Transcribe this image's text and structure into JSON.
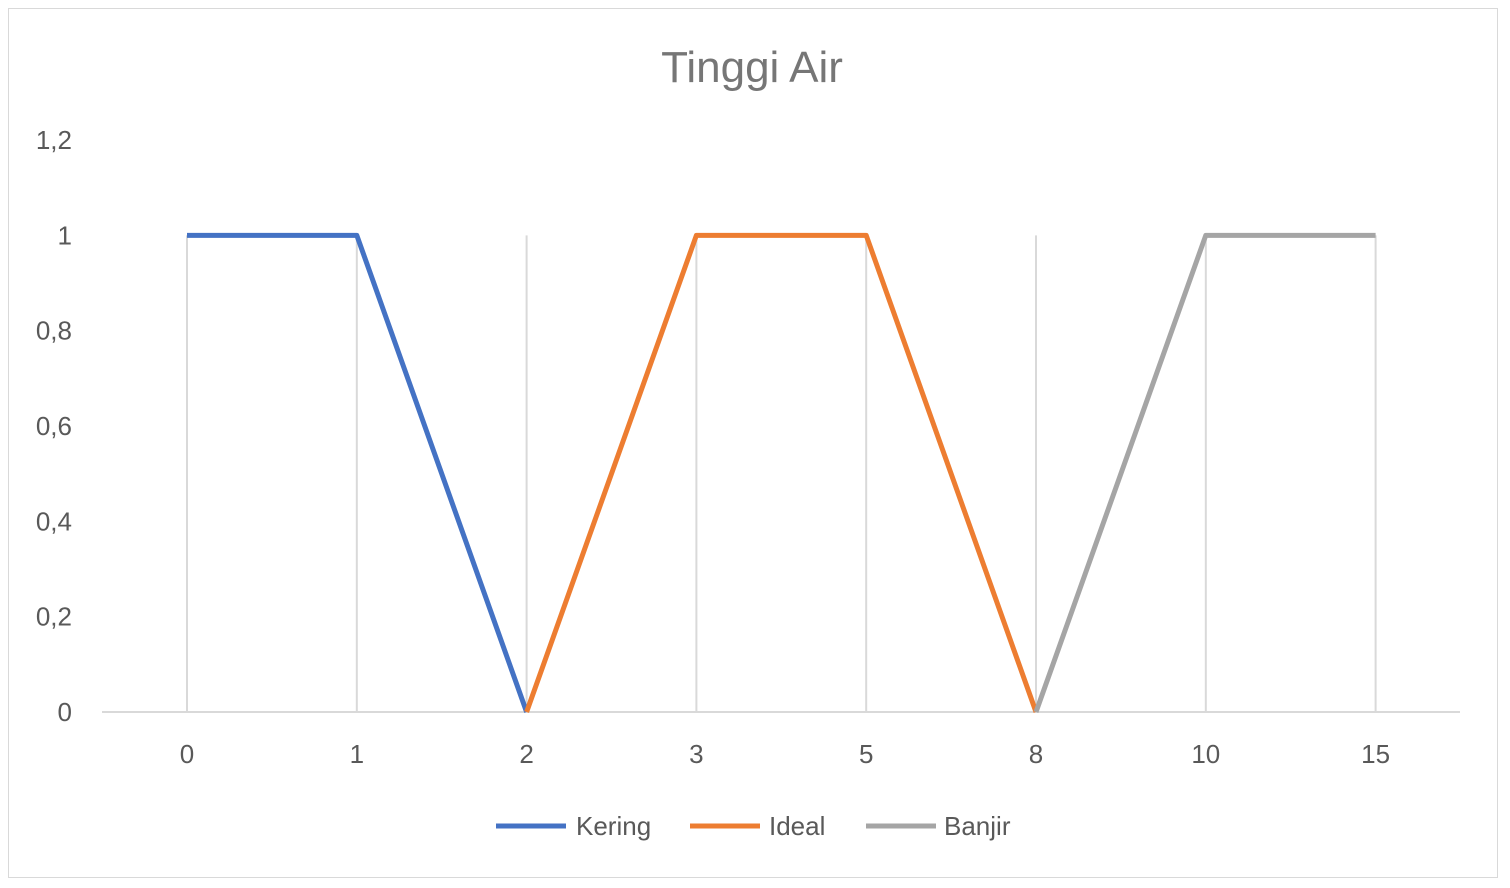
{
  "chart_data": {
    "type": "line",
    "title": "Tinggi Air",
    "xlabel": "",
    "ylabel": "",
    "categories": [
      "0",
      "1",
      "2",
      "3",
      "5",
      "8",
      "10",
      "15"
    ],
    "y_ticks": [
      "0",
      "0,2",
      "0,4",
      "0,6",
      "0,8",
      "1",
      "1,2"
    ],
    "ylim": [
      0,
      1.2
    ],
    "grid": "vertical",
    "legend_position": "bottom",
    "series": [
      {
        "name": "Kering",
        "color": "#4472c4",
        "values": [
          1,
          1,
          0,
          null,
          null,
          null,
          null,
          null
        ]
      },
      {
        "name": "Ideal",
        "color": "#ed7d31",
        "values": [
          null,
          null,
          0,
          1,
          1,
          0,
          null,
          null
        ]
      },
      {
        "name": "Banjir",
        "color": "#a5a5a5",
        "values": [
          null,
          null,
          null,
          null,
          null,
          0,
          1,
          1
        ]
      }
    ]
  }
}
